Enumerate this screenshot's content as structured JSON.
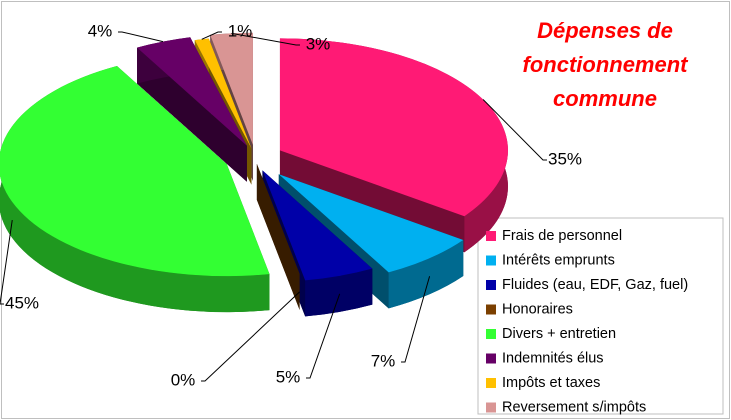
{
  "chart_data": {
    "type": "pie3d",
    "title": "Dépenses de fonctionnement commune",
    "categories": [
      "Frais de personnel",
      "Intérêts emprunts",
      "Fluides (eau, EDF, Gaz, fuel)",
      "Honoraires",
      "Divers + entretien",
      "Indemnités élus",
      "Impôts et taxes",
      "Reversement s/impôts"
    ],
    "values": [
      35,
      7,
      5,
      0,
      45,
      4,
      1,
      3
    ],
    "value_labels": [
      "35%",
      "7%",
      "5%",
      "0%",
      "45%",
      "4%",
      "1%",
      "3%"
    ],
    "colors": [
      "#ff1a75",
      "#00b0f0",
      "#0000a8",
      "#7b3f00",
      "#33ff33",
      "#660066",
      "#ffc000",
      "#d99594"
    ],
    "legend": "right"
  }
}
